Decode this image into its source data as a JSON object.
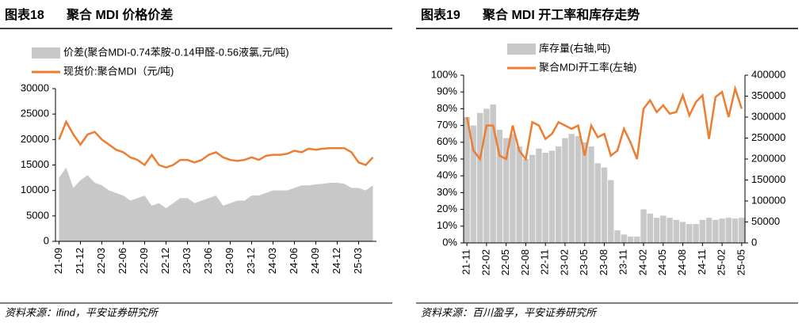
{
  "chart_data": [
    {
      "type": "combo",
      "label": "图表18",
      "title": "聚合 MDI 价格价差",
      "source": "资料来源：ifind，平安证券研究所",
      "categories": [
        "21-09",
        null,
        null,
        "21-12",
        null,
        null,
        "22-03",
        null,
        null,
        "22-06",
        null,
        null,
        "22-09",
        null,
        null,
        "22-12",
        null,
        null,
        "23-03",
        null,
        null,
        "23-06",
        null,
        null,
        "23-09",
        null,
        null,
        "23-12",
        null,
        null,
        "24-03",
        null,
        null,
        "24-06",
        null,
        null,
        "24-09",
        null,
        null,
        "24-12",
        null,
        null,
        "25-03",
        null,
        null
      ],
      "series": [
        {
          "name": "价差(聚合MDI-0.74苯胺-0.14甲醛-0.56液氯,元/吨)",
          "type": "area",
          "color": "#c8c8c8",
          "values": [
            12500,
            14500,
            10500,
            12000,
            13000,
            11500,
            11000,
            10000,
            9500,
            9000,
            8000,
            8500,
            9000,
            7000,
            7500,
            6500,
            7500,
            8500,
            8500,
            7500,
            8000,
            8500,
            9000,
            7000,
            7500,
            8000,
            8000,
            9000,
            9000,
            9500,
            10000,
            10000,
            10000,
            10500,
            11000,
            11000,
            11200,
            11300,
            11500,
            11500,
            11300,
            10500,
            10500,
            10000,
            11000
          ]
        },
        {
          "name": "现货价:聚合MDI（元/吨)",
          "type": "line",
          "color": "#ed7d31",
          "values": [
            20000,
            23500,
            21000,
            19000,
            21000,
            21500,
            20000,
            19000,
            18000,
            17500,
            16500,
            16000,
            15000,
            17000,
            15000,
            14500,
            15000,
            16000,
            16000,
            15500,
            16000,
            17000,
            17500,
            16500,
            16000,
            15800,
            16000,
            16500,
            16000,
            16800,
            17000,
            17000,
            17200,
            17800,
            17500,
            18200,
            18000,
            18200,
            18300,
            18300,
            18300,
            17500,
            15500,
            15000,
            16500
          ]
        }
      ],
      "ylim": [
        0,
        30000
      ],
      "yticks": [
        0,
        5000,
        10000,
        15000,
        20000,
        25000,
        30000
      ]
    },
    {
      "type": "combo",
      "label": "图表19",
      "title": "聚合 MDI 开工率和库存走势",
      "source": "资料来源：百川盈孚，平安证券研究所",
      "categories": [
        "21-11",
        null,
        null,
        "22-02",
        null,
        null,
        "22-05",
        null,
        null,
        "22-08",
        null,
        null,
        "22-11",
        null,
        null,
        "23-02",
        null,
        null,
        "23-05",
        null,
        null,
        "23-08",
        null,
        null,
        "23-11",
        null,
        null,
        "24-02",
        null,
        null,
        "24-05",
        null,
        null,
        "24-08",
        null,
        null,
        "24-11",
        null,
        null,
        "25-02",
        null,
        null,
        "25-05"
      ],
      "series": [
        {
          "name": "库存量(右轴,吨)",
          "type": "bar",
          "axis": "y2",
          "color": "#c8c8c8",
          "values": [
            300000,
            280000,
            310000,
            320000,
            330000,
            270000,
            250000,
            260000,
            230000,
            200000,
            210000,
            225000,
            215000,
            220000,
            230000,
            250000,
            260000,
            255000,
            240000,
            230000,
            190000,
            180000,
            150000,
            30000,
            20000,
            15000,
            15000,
            80000,
            70000,
            60000,
            65000,
            60000,
            55000,
            50000,
            45000,
            45000,
            55000,
            60000,
            55000,
            58000,
            60000,
            58000,
            60000
          ]
        },
        {
          "name": "聚合MDI开工率(左轴)",
          "type": "line",
          "color": "#ed7d31",
          "values": [
            75,
            55,
            50,
            70,
            70,
            52,
            50,
            70,
            55,
            50,
            72,
            70,
            62,
            65,
            72,
            70,
            68,
            70,
            52,
            70,
            63,
            65,
            52,
            55,
            68,
            60,
            50,
            80,
            85,
            78,
            82,
            77,
            78,
            88,
            76,
            84,
            88,
            62,
            87,
            90,
            75,
            92,
            80
          ]
        }
      ],
      "ylim": [
        0,
        100
      ],
      "yticks": [
        {
          "value": 0,
          "label": "0%"
        },
        {
          "value": 10,
          "label": "10%"
        },
        {
          "value": 20,
          "label": "20%"
        },
        {
          "value": 30,
          "label": "30%"
        },
        {
          "value": 40,
          "label": "40%"
        },
        {
          "value": 50,
          "label": "50%"
        },
        {
          "value": 60,
          "label": "60%"
        },
        {
          "value": 70,
          "label": "70%"
        },
        {
          "value": 80,
          "label": "80%"
        },
        {
          "value": 90,
          "label": "90%"
        },
        {
          "value": 100,
          "label": "100%"
        }
      ],
      "y2lim": [
        0,
        400000
      ],
      "y2ticks": [
        0,
        50000,
        100000,
        150000,
        200000,
        250000,
        300000,
        350000,
        400000
      ]
    }
  ]
}
